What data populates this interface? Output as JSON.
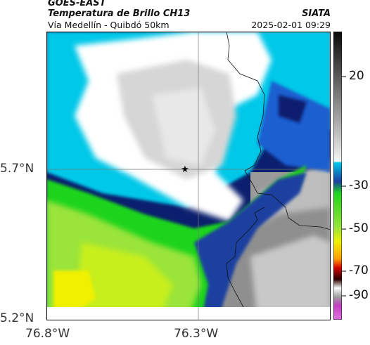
{
  "header": {
    "satellite": "GOES-EAST",
    "product": "Temperatura de Brillo CH13",
    "agency": "SIATA",
    "route": "Vía Medellín - Quibdó 50km",
    "timestamp": "2025-02-01 09:29"
  },
  "map": {
    "y_ticks": [
      "5.7°N",
      "5.2°N"
    ],
    "x_ticks": [
      "76.8°W",
      "76.3°W"
    ],
    "center_marker": "star-icon",
    "borders": "department-boundaries"
  },
  "colorbar": {
    "ticks": [
      "20",
      "-30",
      "-50",
      "-70",
      "-90"
    ],
    "colors": {
      "warm_top": "#1a1a1a",
      "gray": "#9a9a9a",
      "cyan": "#00c8e8",
      "blue": "#1a3fa0",
      "navy": "#0b1f6e",
      "green": "#1fd41f",
      "yellow": "#f0f000",
      "orange": "#ff9a00",
      "red": "#d40000",
      "dark": "#2a0000",
      "magenta": "#c040c0"
    }
  }
}
